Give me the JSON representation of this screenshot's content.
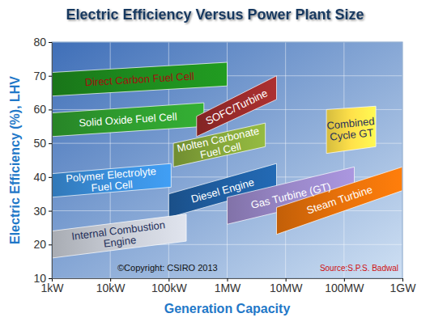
{
  "chart_data": {
    "type": "band",
    "title": "Electric Efficiency Versus Power Plant Size",
    "x_label": "Generation Capacity",
    "y_label": "Electric Efficiency (%), LHV",
    "log": "x",
    "grid": true,
    "xlim": [
      1,
      1000000
    ],
    "xticks": [
      {
        "value": 1,
        "label": "1kW"
      },
      {
        "value": 10,
        "label": "10kW"
      },
      {
        "value": 100,
        "label": "100kW"
      },
      {
        "value": 1000,
        "label": "1MW"
      },
      {
        "value": 10000,
        "label": "10MW"
      },
      {
        "value": 100000,
        "label": "100MW"
      },
      {
        "value": 1000000,
        "label": "1GW"
      }
    ],
    "ylim": [
      10,
      80
    ],
    "yticks": [
      10,
      20,
      30,
      40,
      50,
      60,
      70,
      80
    ],
    "annotations": [
      "©Copyright: CSIRO 2013",
      "Source:S.P.S. Badwal"
    ],
    "series": [
      {
        "name": "Direct Carbon Fuel Cell",
        "color": "#1e8c1e",
        "x": [
          1,
          1000
        ],
        "low": [
          64,
          67
        ],
        "high": [
          71,
          74
        ]
      },
      {
        "name": "Solid Oxide Fuel Cell",
        "color": "#2f9e2f",
        "x": [
          1,
          400
        ],
        "low": [
          52,
          55
        ],
        "high": [
          59,
          62
        ]
      },
      {
        "name": "SOFC/Turbine",
        "color": "#9b2b2b",
        "x": [
          300,
          7000
        ],
        "low": [
          52,
          63
        ],
        "high": [
          58,
          70
        ]
      },
      {
        "name": "Molten Carbonate\nFuel Cell",
        "color": "#86a83a",
        "x": [
          120,
          4500
        ],
        "low": [
          43,
          49
        ],
        "high": [
          50,
          56
        ]
      },
      {
        "name": "Polymer Electrolyte\nFuel Cell",
        "color": "#3a8fdc",
        "x": [
          1,
          110
        ],
        "low": [
          34,
          37
        ],
        "high": [
          41,
          44
        ]
      },
      {
        "name": "Diesel Engine",
        "color": "#1f5fa3",
        "x": [
          100,
          7000
        ],
        "low": [
          28,
          37
        ],
        "high": [
          35,
          44
        ]
      },
      {
        "name": "Internal Combustion\nEngine",
        "color": "#c9cdd6",
        "x": [
          1,
          200
        ],
        "low": [
          16,
          21
        ],
        "high": [
          24,
          29
        ]
      },
      {
        "name": "Gas Turbine (GT)",
        "color": "#9a88c9",
        "x": [
          1000,
          150000
        ],
        "low": [
          26,
          35
        ],
        "high": [
          34,
          43
        ]
      },
      {
        "name": "Steam Turbine",
        "color": "#e8710a",
        "x": [
          7000,
          1000000
        ],
        "low": [
          23,
          36
        ],
        "high": [
          31,
          43
        ]
      },
      {
        "name": "Combined\nCycle GT",
        "color": "#ffe14a",
        "x": [
          50000,
          350000
        ],
        "low": [
          47,
          49
        ],
        "high": [
          60,
          61
        ]
      }
    ]
  }
}
